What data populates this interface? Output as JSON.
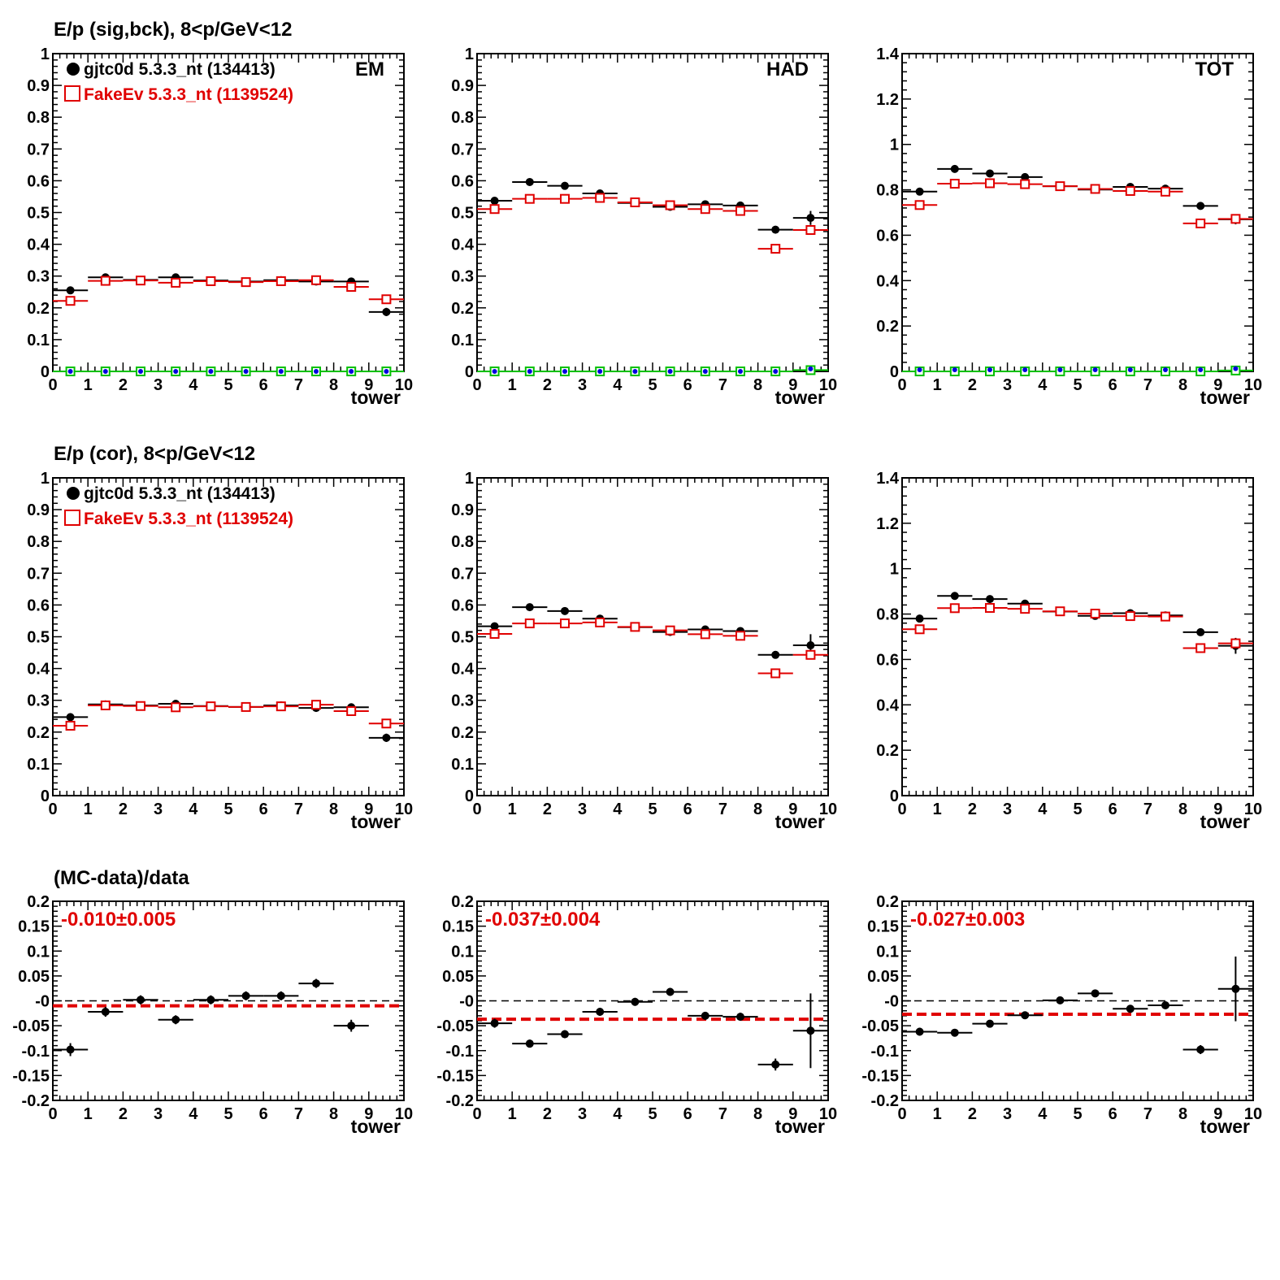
{
  "colors": {
    "data": "#000000",
    "mc": "#e00000",
    "green": "#00c000",
    "blue": "#0000e0"
  },
  "row_titles": [
    "E/p (sig,bck),  8<p/GeV<12",
    "E/p (cor),  8<p/GeV<12",
    "(MC-data)/data"
  ],
  "legend": {
    "data_label": "gjtc0d 5.3.3_nt (134413)",
    "mc_label": "FakeEv 5.3.3_nt (1139524)"
  },
  "chart_data": [
    {
      "id": "r1c1",
      "type": "scatter",
      "corner_label": "EM",
      "xlabel": "tower",
      "xlim": [
        0,
        10
      ],
      "ylim": [
        0,
        1
      ],
      "yticks": [
        "0",
        "0.1",
        "0.2",
        "0.3",
        "0.4",
        "0.5",
        "0.6",
        "0.7",
        "0.8",
        "0.9",
        "1"
      ],
      "series": [
        {
          "name": "gjtc0d 5.3.3_nt (134413)",
          "marker": "dot",
          "color": "#000000",
          "x": [
            0.5,
            1.5,
            2.5,
            3.5,
            4.5,
            5.5,
            6.5,
            7.5,
            8.5,
            9.5
          ],
          "y": [
            0.255,
            0.296,
            0.288,
            0.296,
            0.286,
            0.283,
            0.287,
            0.283,
            0.283,
            0.187
          ],
          "yerr": [
            0,
            0,
            0,
            0,
            0,
            0,
            0,
            0,
            0,
            0.013
          ]
        },
        {
          "name": "FakeEv 5.3.3_nt (1139524)",
          "marker": "open-square",
          "color": "#e00000",
          "x": [
            0.5,
            1.5,
            2.5,
            3.5,
            4.5,
            5.5,
            6.5,
            7.5,
            8.5,
            9.5
          ],
          "y": [
            0.222,
            0.285,
            0.286,
            0.279,
            0.284,
            0.281,
            0.284,
            0.287,
            0.266,
            0.227
          ],
          "yerr": [
            0,
            0,
            0,
            0,
            0,
            0,
            0,
            0,
            0,
            0
          ]
        },
        {
          "marker": "open-square",
          "color": "#00c000",
          "x": [
            0.5,
            1.5,
            2.5,
            3.5,
            4.5,
            5.5,
            6.5,
            7.5,
            8.5,
            9.5
          ],
          "y": [
            0,
            0,
            0,
            0,
            0,
            0,
            0,
            0,
            0,
            0
          ]
        },
        {
          "marker": "dot-small",
          "color": "#0000e0",
          "x": [
            0.5,
            1.5,
            2.5,
            3.5,
            4.5,
            5.5,
            6.5,
            7.5,
            8.5,
            9.5
          ],
          "y": [
            0,
            0,
            0,
            0,
            0,
            0,
            0,
            0,
            0,
            0
          ]
        }
      ]
    },
    {
      "id": "r1c2",
      "type": "scatter",
      "corner_label": "HAD",
      "xlabel": "tower",
      "xlim": [
        0,
        10
      ],
      "ylim": [
        0,
        1
      ],
      "yticks": [
        "0",
        "0.1",
        "0.2",
        "0.3",
        "0.4",
        "0.5",
        "0.6",
        "0.7",
        "0.8",
        "0.9",
        "1"
      ],
      "series": [
        {
          "marker": "dot",
          "color": "#000000",
          "x": [
            0.5,
            1.5,
            2.5,
            3.5,
            4.5,
            5.5,
            6.5,
            7.5,
            8.5,
            9.5
          ],
          "y": [
            0.537,
            0.596,
            0.584,
            0.56,
            0.53,
            0.518,
            0.526,
            0.522,
            0.446,
            0.483
          ],
          "yerr": [
            0,
            0,
            0,
            0,
            0,
            0,
            0,
            0,
            0,
            0.022
          ]
        },
        {
          "marker": "open-square",
          "color": "#e00000",
          "x": [
            0.5,
            1.5,
            2.5,
            3.5,
            4.5,
            5.5,
            6.5,
            7.5,
            8.5,
            9.5
          ],
          "y": [
            0.511,
            0.543,
            0.543,
            0.546,
            0.532,
            0.523,
            0.511,
            0.505,
            0.386,
            0.445
          ],
          "yerr": [
            0,
            0,
            0,
            0,
            0,
            0,
            0,
            0,
            0,
            0
          ]
        },
        {
          "marker": "open-square",
          "color": "#00c000",
          "x": [
            0.5,
            1.5,
            2.5,
            3.5,
            4.5,
            5.5,
            6.5,
            7.5,
            8.5,
            9.5
          ],
          "y": [
            0,
            0,
            0,
            0,
            0,
            0,
            0,
            0,
            0,
            0.004
          ]
        },
        {
          "marker": "dot-small",
          "color": "#0000e0",
          "x": [
            0.5,
            1.5,
            2.5,
            3.5,
            4.5,
            5.5,
            6.5,
            7.5,
            8.5,
            9.5
          ],
          "y": [
            0,
            0,
            0,
            0,
            0,
            0,
            0,
            0,
            0,
            0.008
          ]
        }
      ]
    },
    {
      "id": "r1c3",
      "type": "scatter",
      "corner_label": "TOT",
      "xlabel": "tower",
      "xlim": [
        0,
        10
      ],
      "ylim": [
        0,
        1.4
      ],
      "yticks": [
        "0",
        "0.2",
        "0.4",
        "0.6",
        "0.8",
        "1",
        "1.2",
        "1.4"
      ],
      "series": [
        {
          "marker": "dot",
          "color": "#000000",
          "x": [
            0.5,
            1.5,
            2.5,
            3.5,
            4.5,
            5.5,
            6.5,
            7.5,
            8.5,
            9.5
          ],
          "y": [
            0.792,
            0.892,
            0.872,
            0.856,
            0.816,
            0.801,
            0.813,
            0.805,
            0.729,
            0.67
          ],
          "yerr": [
            0,
            0,
            0,
            0,
            0,
            0,
            0,
            0,
            0,
            0.022
          ]
        },
        {
          "marker": "open-square",
          "color": "#e00000",
          "x": [
            0.5,
            1.5,
            2.5,
            3.5,
            4.5,
            5.5,
            6.5,
            7.5,
            8.5,
            9.5
          ],
          "y": [
            0.733,
            0.827,
            0.829,
            0.825,
            0.816,
            0.804,
            0.795,
            0.792,
            0.652,
            0.672
          ],
          "yerr": [
            0,
            0,
            0,
            0,
            0,
            0,
            0,
            0,
            0,
            0
          ]
        },
        {
          "marker": "open-square",
          "color": "#00c000",
          "x": [
            0.5,
            1.5,
            2.5,
            3.5,
            4.5,
            5.5,
            6.5,
            7.5,
            8.5,
            9.5
          ],
          "y": [
            0,
            0,
            0,
            0,
            0,
            0,
            0,
            0,
            0,
            0.004
          ]
        },
        {
          "marker": "dot-small",
          "color": "#0000e0",
          "x": [
            0.5,
            1.5,
            2.5,
            3.5,
            4.5,
            5.5,
            6.5,
            7.5,
            8.5,
            9.5
          ],
          "y": [
            0.007,
            0.007,
            0.007,
            0.007,
            0.007,
            0.007,
            0.007,
            0.007,
            0.007,
            0.012
          ]
        }
      ]
    },
    {
      "id": "r2c1",
      "type": "scatter",
      "xlabel": "tower",
      "xlim": [
        0,
        10
      ],
      "ylim": [
        0,
        1
      ],
      "yticks": [
        "0",
        "0.1",
        "0.2",
        "0.3",
        "0.4",
        "0.5",
        "0.6",
        "0.7",
        "0.8",
        "0.9",
        "1"
      ],
      "series": [
        {
          "name": "gjtc0d 5.3.3_nt (134413)",
          "marker": "dot",
          "color": "#000000",
          "x": [
            0.5,
            1.5,
            2.5,
            3.5,
            4.5,
            5.5,
            6.5,
            7.5,
            8.5,
            9.5
          ],
          "y": [
            0.247,
            0.287,
            0.284,
            0.289,
            0.282,
            0.279,
            0.284,
            0.276,
            0.278,
            0.182
          ],
          "yerr": [
            0,
            0,
            0,
            0,
            0,
            0,
            0,
            0,
            0,
            0.013
          ]
        },
        {
          "name": "FakeEv 5.3.3_nt (1139524)",
          "marker": "open-square",
          "color": "#e00000",
          "x": [
            0.5,
            1.5,
            2.5,
            3.5,
            4.5,
            5.5,
            6.5,
            7.5,
            8.5,
            9.5
          ],
          "y": [
            0.22,
            0.284,
            0.282,
            0.278,
            0.281,
            0.279,
            0.281,
            0.286,
            0.266,
            0.227
          ],
          "yerr": [
            0,
            0,
            0,
            0,
            0,
            0,
            0,
            0,
            0,
            0
          ]
        }
      ]
    },
    {
      "id": "r2c2",
      "type": "scatter",
      "xlabel": "tower",
      "xlim": [
        0,
        10
      ],
      "ylim": [
        0,
        1
      ],
      "yticks": [
        "0",
        "0.1",
        "0.2",
        "0.3",
        "0.4",
        "0.5",
        "0.6",
        "0.7",
        "0.8",
        "0.9",
        "1"
      ],
      "series": [
        {
          "marker": "dot",
          "color": "#000000",
          "x": [
            0.5,
            1.5,
            2.5,
            3.5,
            4.5,
            5.5,
            6.5,
            7.5,
            8.5,
            9.5
          ],
          "y": [
            0.533,
            0.593,
            0.581,
            0.557,
            0.53,
            0.515,
            0.523,
            0.518,
            0.443,
            0.473
          ],
          "yerr": [
            0,
            0,
            0,
            0,
            0,
            0,
            0,
            0,
            0,
            0.035
          ]
        },
        {
          "marker": "open-square",
          "color": "#e00000",
          "x": [
            0.5,
            1.5,
            2.5,
            3.5,
            4.5,
            5.5,
            6.5,
            7.5,
            8.5,
            9.5
          ],
          "y": [
            0.509,
            0.542,
            0.542,
            0.545,
            0.531,
            0.52,
            0.508,
            0.503,
            0.385,
            0.443
          ],
          "yerr": [
            0,
            0,
            0,
            0,
            0,
            0,
            0,
            0,
            0,
            0
          ]
        }
      ]
    },
    {
      "id": "r2c3",
      "type": "scatter",
      "xlabel": "tower",
      "xlim": [
        0,
        10
      ],
      "ylim": [
        0,
        1.4
      ],
      "yticks": [
        "0",
        "0.2",
        "0.4",
        "0.6",
        "0.8",
        "1",
        "1.2",
        "1.4"
      ],
      "series": [
        {
          "marker": "dot",
          "color": "#000000",
          "x": [
            0.5,
            1.5,
            2.5,
            3.5,
            4.5,
            5.5,
            6.5,
            7.5,
            8.5,
            9.5
          ],
          "y": [
            0.78,
            0.88,
            0.866,
            0.846,
            0.811,
            0.792,
            0.804,
            0.794,
            0.72,
            0.66
          ],
          "yerr": [
            0,
            0,
            0,
            0,
            0,
            0,
            0,
            0,
            0,
            0.035
          ]
        },
        {
          "marker": "open-square",
          "color": "#e00000",
          "x": [
            0.5,
            1.5,
            2.5,
            3.5,
            4.5,
            5.5,
            6.5,
            7.5,
            8.5,
            9.5
          ],
          "y": [
            0.733,
            0.826,
            0.827,
            0.823,
            0.812,
            0.802,
            0.791,
            0.789,
            0.65,
            0.671
          ],
          "yerr": [
            0,
            0,
            0,
            0,
            0,
            0,
            0,
            0,
            0,
            0
          ]
        }
      ]
    },
    {
      "id": "r3c1",
      "type": "scatter",
      "xlabel": "tower",
      "xlim": [
        0,
        10
      ],
      "ylim": [
        -0.2,
        0.2
      ],
      "fit_label": "-0.010±0.005",
      "fit_value": -0.01,
      "yticks": [
        "0.2",
        "0.15",
        "0.1",
        "0.05",
        "-0",
        "-0.05",
        "-0.1",
        "-0.15",
        "-0.2"
      ],
      "series": [
        {
          "marker": "dot",
          "color": "#000000",
          "x": [
            0.5,
            1.5,
            2.5,
            3.5,
            4.5,
            5.5,
            6.5,
            7.5,
            8.5
          ],
          "y": [
            -0.098,
            -0.022,
            0.002,
            -0.038,
            0.002,
            0.01,
            0.01,
            0.035,
            -0.05
          ],
          "yerr": [
            0.013,
            0.01,
            0.009,
            0.009,
            0.009,
            0.009,
            0.009,
            0.009,
            0.012
          ]
        }
      ]
    },
    {
      "id": "r3c2",
      "type": "scatter",
      "xlabel": "tower",
      "xlim": [
        0,
        10
      ],
      "ylim": [
        -0.2,
        0.2
      ],
      "fit_label": "-0.037±0.004",
      "fit_value": -0.037,
      "yticks": [
        "0.2",
        "0.15",
        "0.1",
        "0.05",
        "-0",
        "-0.05",
        "-0.1",
        "-0.15",
        "-0.2"
      ],
      "series": [
        {
          "marker": "dot",
          "color": "#000000",
          "x": [
            0.5,
            1.5,
            2.5,
            3.5,
            4.5,
            5.5,
            6.5,
            7.5,
            8.5,
            9.5
          ],
          "y": [
            -0.045,
            -0.086,
            -0.067,
            -0.022,
            -0.002,
            0.018,
            -0.03,
            -0.032,
            -0.128,
            -0.06
          ],
          "yerr": [
            0.009,
            0.008,
            0.008,
            0.008,
            0.008,
            0.008,
            0.008,
            0.008,
            0.012,
            0.075
          ]
        }
      ]
    },
    {
      "id": "r3c3",
      "type": "scatter",
      "xlabel": "tower",
      "xlim": [
        0,
        10
      ],
      "ylim": [
        -0.2,
        0.2
      ],
      "fit_label": "-0.027±0.003",
      "fit_value": -0.027,
      "yticks": [
        "0.2",
        "0.15",
        "0.1",
        "0.05",
        "-0",
        "-0.05",
        "-0.1",
        "-0.15",
        "-0.2"
      ],
      "series": [
        {
          "marker": "dot",
          "color": "#000000",
          "x": [
            0.5,
            1.5,
            2.5,
            3.5,
            4.5,
            5.5,
            6.5,
            7.5,
            8.5,
            9.5
          ],
          "y": [
            -0.062,
            -0.064,
            -0.046,
            -0.029,
            0.001,
            0.015,
            -0.016,
            -0.009,
            -0.098,
            0.024
          ],
          "yerr": [
            0.008,
            0.007,
            0.007,
            0.007,
            0.007,
            0.007,
            0.007,
            0.007,
            0.009,
            0.065
          ]
        }
      ]
    }
  ]
}
